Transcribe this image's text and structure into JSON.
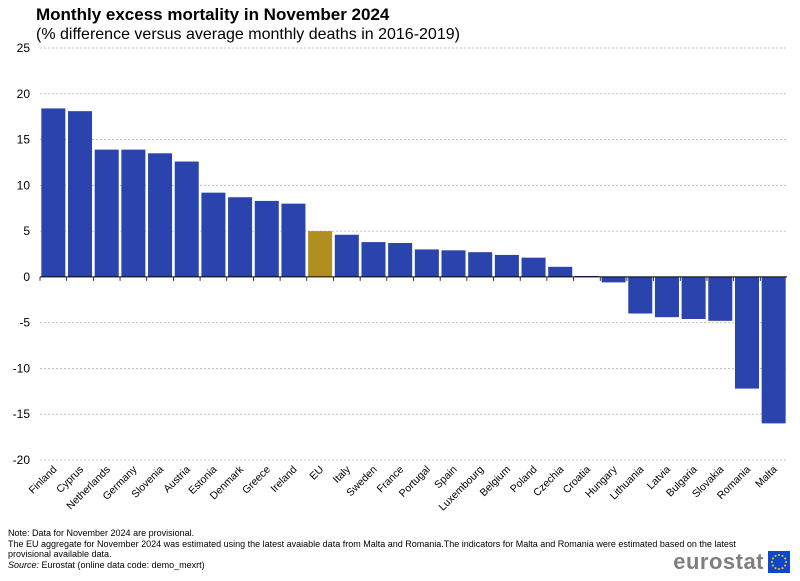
{
  "title": "Monthly excess mortality in November 2024",
  "subtitle": "(% difference versus average monthly deaths in 2016-2019)",
  "chart_data": {
    "type": "bar",
    "title": "Monthly excess mortality in November 2024",
    "subtitle": "(% difference versus average monthly deaths in 2016-2019)",
    "xlabel": "",
    "ylabel": "",
    "ylim": [
      -20,
      25
    ],
    "yticks": [
      25,
      20,
      15,
      10,
      5,
      0,
      -5,
      -10,
      -15,
      -20
    ],
    "grid": true,
    "categories": [
      "Finland",
      "Cyprus",
      "Netherlands",
      "Germany",
      "Slovenia",
      "Austria",
      "Estonia",
      "Denmark",
      "Greece",
      "Ireland",
      "EU",
      "Italy",
      "Sweden",
      "France",
      "Portugal",
      "Spain",
      "Luxembourg",
      "Belgium",
      "Poland",
      "Czechia",
      "Croatia",
      "Hungary",
      "Lithuania",
      "Latvia",
      "Bulgaria",
      "Slovakia",
      "Romania",
      "Malta"
    ],
    "values": [
      18.4,
      18.1,
      13.9,
      13.9,
      13.5,
      12.6,
      9.2,
      8.7,
      8.3,
      8.0,
      5.0,
      4.6,
      3.8,
      3.7,
      3.0,
      2.9,
      2.7,
      2.4,
      2.1,
      1.1,
      0.1,
      -0.6,
      -4.0,
      -4.4,
      -4.6,
      -4.8,
      -12.2,
      -16.0
    ],
    "highlight": "EU",
    "colors": {
      "bar": "#2a43ad",
      "highlight": "#b08e20",
      "grid": "#b4b4b4",
      "axis": "#000000"
    }
  },
  "notes": {
    "line1": "Note: Data  for November 2024 are provisional.",
    "line2": "The EU  aggregate for November 2024 was estimated using the latest avaiable data  from Malta  and Romania.The  indicators for Malta and Romania  were estimated based on the latest",
    "line3": "provisional available data.",
    "source_label": "Source:",
    "source_text": " Eurostat (online data code: demo_mexrt)"
  },
  "logo": {
    "text": "eurostat"
  }
}
